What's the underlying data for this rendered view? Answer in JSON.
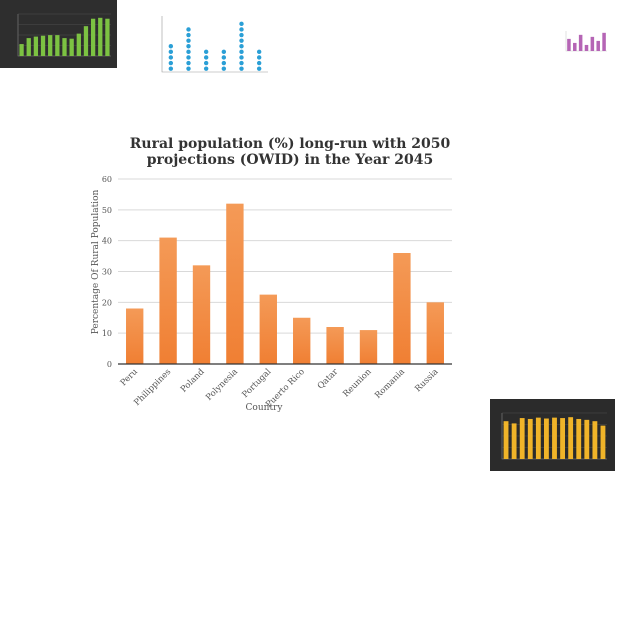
{
  "colors": {
    "bar": "#f07f33",
    "bar_light": "#f49a57",
    "grid": "#d9d9d9",
    "axis": "#333333",
    "green_bar": "#7cc242",
    "yellow_bar": "#f0b429",
    "blue_dot": "#2a9fd6",
    "purple_bar": "#b565b5"
  },
  "chart_data": {
    "type": "bar",
    "title_line1": "Rural population (%) long-run with 2050",
    "title_line2": "projections (OWID) in the Year 2045",
    "xlabel": "Country",
    "ylabel": "Percentage Of Rural Population",
    "ylim": [
      0,
      60
    ],
    "yticks": [
      0,
      10,
      20,
      30,
      40,
      50,
      60
    ],
    "categories": [
      "Peru",
      "Philippines",
      "Poland",
      "Polynesia",
      "Portugal",
      "Puerto Rico",
      "Qatar",
      "Reunion",
      "Romania",
      "Russia"
    ],
    "values": [
      18,
      41,
      32,
      52,
      22.5,
      15,
      12,
      11,
      36,
      20
    ],
    "grid": true,
    "legend": "none"
  },
  "thumbnails": {
    "green": {
      "values": [
        4,
        6,
        6.5,
        6.8,
        7,
        7,
        6,
        5.8,
        7.5,
        10,
        12.5,
        12.8,
        12.5
      ]
    },
    "dots": {
      "values": [
        5,
        8,
        4,
        4,
        9,
        4
      ]
    },
    "purple": {
      "values": [
        6,
        4,
        8,
        3,
        7,
        5,
        9
      ]
    },
    "yellow": {
      "values": [
        8.5,
        8,
        9.2,
        9,
        9.3,
        9.1,
        9.3,
        9.2,
        9.4,
        9,
        8.8,
        8.5,
        7.5
      ]
    }
  }
}
